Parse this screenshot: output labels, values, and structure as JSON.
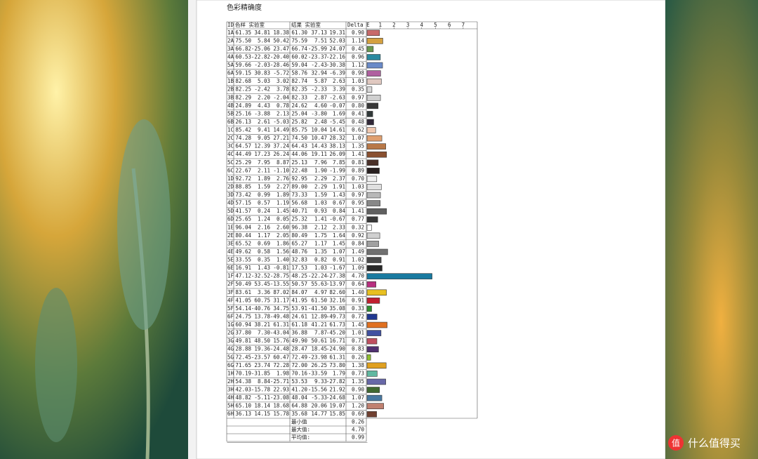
{
  "title": "色彩精确度",
  "table": {
    "header": [
      "ID",
      "色样 实验室",
      "结果 实验室",
      "Delta E"
    ],
    "axis_ticks": [
      1,
      2,
      3,
      4,
      5,
      6,
      7
    ],
    "rows": [
      {
        "id": "1A",
        "sample": [
          "61.35",
          "34.81",
          "18.38"
        ],
        "result": [
          "61.30",
          "37.13",
          "19.31"
        ],
        "delta_e": "0.90",
        "color": "#c86a6a"
      },
      {
        "id": "2A",
        "sample": [
          "75.50",
          "5.84",
          "50.42"
        ],
        "result": [
          "75.59",
          "7.51",
          "52.03"
        ],
        "delta_e": "1.14",
        "color": "#d4a040"
      },
      {
        "id": "3A",
        "sample": [
          "66.82",
          "-25.06",
          "23.47"
        ],
        "result": [
          "66.74",
          "-25.99",
          "24.07"
        ],
        "delta_e": "0.45",
        "color": "#6a9a50"
      },
      {
        "id": "4A",
        "sample": [
          "60.53",
          "-22.82",
          "-20.40"
        ],
        "result": [
          "60.02",
          "-23.37",
          "-22.16"
        ],
        "delta_e": "0.96",
        "color": "#2a8aa0"
      },
      {
        "id": "5A",
        "sample": [
          "59.66",
          "-2.03",
          "-28.46"
        ],
        "result": [
          "59.04",
          "-2.43",
          "-30.38"
        ],
        "delta_e": "1.12",
        "color": "#6a8ac8"
      },
      {
        "id": "6A",
        "sample": [
          "59.15",
          "30.83",
          "-5.72"
        ],
        "result": [
          "58.76",
          "32.94",
          "-6.39"
        ],
        "delta_e": "0.98",
        "color": "#b060a0"
      },
      {
        "id": "1B",
        "sample": [
          "82.68",
          "5.03",
          "3.02"
        ],
        "result": [
          "82.74",
          "5.87",
          "2.63"
        ],
        "delta_e": "1.03",
        "color": "#e0c8c0"
      },
      {
        "id": "2B",
        "sample": [
          "82.25",
          "-2.42",
          "3.78"
        ],
        "result": [
          "82.35",
          "-2.33",
          "3.39"
        ],
        "delta_e": "0.35",
        "color": "#d8d8d8"
      },
      {
        "id": "3B",
        "sample": [
          "82.29",
          "2.20",
          "-2.04"
        ],
        "result": [
          "82.33",
          "2.87",
          "-2.63"
        ],
        "delta_e": "0.97",
        "color": "#d0d0d0"
      },
      {
        "id": "4B",
        "sample": [
          "24.89",
          "4.43",
          "0.78"
        ],
        "result": [
          "24.62",
          "4.60",
          "-0.07"
        ],
        "delta_e": "0.80",
        "color": "#383838"
      },
      {
        "id": "5B",
        "sample": [
          "25.16",
          "-3.88",
          "2.13"
        ],
        "result": [
          "25.04",
          "-3.80",
          "1.69"
        ],
        "delta_e": "0.41",
        "color": "#303838"
      },
      {
        "id": "6B",
        "sample": [
          "26.13",
          "2.61",
          "-5.03"
        ],
        "result": [
          "25.82",
          "2.48",
          "-5.45"
        ],
        "delta_e": "0.48",
        "color": "#302838"
      },
      {
        "id": "1C",
        "sample": [
          "85.42",
          "9.41",
          "14.49"
        ],
        "result": [
          "85.75",
          "10.04",
          "14.61"
        ],
        "delta_e": "0.62",
        "color": "#f0c8b0"
      },
      {
        "id": "2C",
        "sample": [
          "74.28",
          "9.05",
          "27.21"
        ],
        "result": [
          "74.50",
          "10.47",
          "28.32"
        ],
        "delta_e": "1.07",
        "color": "#e0a070"
      },
      {
        "id": "3C",
        "sample": [
          "64.57",
          "12.39",
          "37.24"
        ],
        "result": [
          "64.43",
          "14.43",
          "38.13"
        ],
        "delta_e": "1.35",
        "color": "#b87848"
      },
      {
        "id": "4C",
        "sample": [
          "44.49",
          "17.23",
          "26.24"
        ],
        "result": [
          "44.06",
          "19.11",
          "26.09"
        ],
        "delta_e": "1.41",
        "color": "#8a5030"
      },
      {
        "id": "5C",
        "sample": [
          "25.29",
          "7.95",
          "8.87"
        ],
        "result": [
          "25.13",
          "7.96",
          "7.85"
        ],
        "delta_e": "0.81",
        "color": "#4a3028"
      },
      {
        "id": "6C",
        "sample": [
          "22.67",
          "2.11",
          "-1.10"
        ],
        "result": [
          "22.48",
          "1.90",
          "-1.99"
        ],
        "delta_e": "0.89",
        "color": "#282020"
      },
      {
        "id": "1D",
        "sample": [
          "92.72",
          "1.89",
          "2.76"
        ],
        "result": [
          "92.95",
          "2.29",
          "2.37"
        ],
        "delta_e": "0.70",
        "color": "#f0f0f0"
      },
      {
        "id": "2D",
        "sample": [
          "88.85",
          "1.59",
          "2.27"
        ],
        "result": [
          "89.00",
          "2.29",
          "1.91"
        ],
        "delta_e": "1.03",
        "color": "#e0e0e0"
      },
      {
        "id": "3D",
        "sample": [
          "73.42",
          "0.99",
          "1.89"
        ],
        "result": [
          "73.33",
          "1.59",
          "1.43"
        ],
        "delta_e": "0.97",
        "color": "#b8b8b8"
      },
      {
        "id": "4D",
        "sample": [
          "57.15",
          "0.57",
          "1.19"
        ],
        "result": [
          "56.68",
          "1.03",
          "0.67"
        ],
        "delta_e": "0.95",
        "color": "#888888"
      },
      {
        "id": "5D",
        "sample": [
          "41.57",
          "0.24",
          "1.45"
        ],
        "result": [
          "40.71",
          "0.93",
          "0.84"
        ],
        "delta_e": "1.41",
        "color": "#606060"
      },
      {
        "id": "6D",
        "sample": [
          "25.65",
          "1.24",
          "0.05"
        ],
        "result": [
          "25.32",
          "1.41",
          "-0.67"
        ],
        "delta_e": "0.77",
        "color": "#383838"
      },
      {
        "id": "1E",
        "sample": [
          "96.04",
          "2.16",
          "2.60"
        ],
        "result": [
          "96.38",
          "2.12",
          "2.33"
        ],
        "delta_e": "0.32",
        "color": "#ffffff"
      },
      {
        "id": "2E",
        "sample": [
          "80.44",
          "1.17",
          "2.05"
        ],
        "result": [
          "80.49",
          "1.75",
          "1.64"
        ],
        "delta_e": "0.92",
        "color": "#d0d0d0"
      },
      {
        "id": "3E",
        "sample": [
          "65.52",
          "0.69",
          "1.86"
        ],
        "result": [
          "65.27",
          "1.17",
          "1.45"
        ],
        "delta_e": "0.84",
        "color": "#a0a0a0"
      },
      {
        "id": "4E",
        "sample": [
          "49.62",
          "0.58",
          "1.56"
        ],
        "result": [
          "48.76",
          "1.35",
          "1.07"
        ],
        "delta_e": "1.49",
        "color": "#707070"
      },
      {
        "id": "5E",
        "sample": [
          "33.55",
          "0.35",
          "1.40"
        ],
        "result": [
          "32.83",
          "0.82",
          "0.91"
        ],
        "delta_e": "1.02",
        "color": "#484848"
      },
      {
        "id": "6E",
        "sample": [
          "16.91",
          "1.43",
          "-0.81"
        ],
        "result": [
          "17.53",
          "1.03",
          "-1.67"
        ],
        "delta_e": "1.09",
        "color": "#282828"
      },
      {
        "id": "1F",
        "sample": [
          "47.12",
          "-32.52",
          "-28.75"
        ],
        "result": [
          "48.25",
          "-22.24",
          "-27.38"
        ],
        "delta_e": "4.70",
        "color": "#1a7aa0"
      },
      {
        "id": "2F",
        "sample": [
          "50.49",
          "53.45",
          "-13.55"
        ],
        "result": [
          "50.57",
          "55.63",
          "-13.97"
        ],
        "delta_e": "0.64",
        "color": "#b83080"
      },
      {
        "id": "3F",
        "sample": [
          "83.61",
          "3.36",
          "87.02"
        ],
        "result": [
          "84.07",
          "4.97",
          "82.60"
        ],
        "delta_e": "1.40",
        "color": "#e8c020"
      },
      {
        "id": "4F",
        "sample": [
          "41.05",
          "60.75",
          "31.17"
        ],
        "result": [
          "41.95",
          "61.50",
          "32.16"
        ],
        "delta_e": "0.91",
        "color": "#c02030"
      },
      {
        "id": "5F",
        "sample": [
          "54.14",
          "-40.76",
          "34.75"
        ],
        "result": [
          "53.91",
          "-41.50",
          "35.08"
        ],
        "delta_e": "0.33",
        "color": "#309030"
      },
      {
        "id": "6F",
        "sample": [
          "24.75",
          "13.78",
          "-49.48"
        ],
        "result": [
          "24.61",
          "12.89",
          "-49.73"
        ],
        "delta_e": "0.72",
        "color": "#203890"
      },
      {
        "id": "1G",
        "sample": [
          "60.94",
          "38.21",
          "61.31"
        ],
        "result": [
          "61.18",
          "41.21",
          "61.73"
        ],
        "delta_e": "1.45",
        "color": "#e07020"
      },
      {
        "id": "2G",
        "sample": [
          "37.80",
          "7.30",
          "-43.04"
        ],
        "result": [
          "36.88",
          "7.87",
          "-45.20"
        ],
        "delta_e": "1.01",
        "color": "#4050a0"
      },
      {
        "id": "3G",
        "sample": [
          "49.81",
          "48.50",
          "15.76"
        ],
        "result": [
          "49.90",
          "50.61",
          "16.71"
        ],
        "delta_e": "0.71",
        "color": "#c05060"
      },
      {
        "id": "4G",
        "sample": [
          "28.88",
          "19.36",
          "-24.48"
        ],
        "result": [
          "28.47",
          "18.45",
          "-24.90"
        ],
        "delta_e": "0.83",
        "color": "#503070"
      },
      {
        "id": "5G",
        "sample": [
          "72.45",
          "-23.57",
          "60.47"
        ],
        "result": [
          "72.49",
          "-23.98",
          "61.31"
        ],
        "delta_e": "0.26",
        "color": "#90c030"
      },
      {
        "id": "6G",
        "sample": [
          "71.65",
          "23.74",
          "72.28"
        ],
        "result": [
          "72.00",
          "26.25",
          "73.80"
        ],
        "delta_e": "1.38",
        "color": "#e0a020"
      },
      {
        "id": "1H",
        "sample": [
          "70.19",
          "-31.85",
          "1.98"
        ],
        "result": [
          "70.16",
          "-33.59",
          "1.79"
        ],
        "delta_e": "0.73",
        "color": "#60b8a0"
      },
      {
        "id": "2H",
        "sample": [
          "54.38",
          "8.84",
          "-25.71"
        ],
        "result": [
          "53.53",
          "9.33",
          "-27.82"
        ],
        "delta_e": "1.35",
        "color": "#6868a8"
      },
      {
        "id": "3H",
        "sample": [
          "42.03",
          "-15.78",
          "22.93"
        ],
        "result": [
          "41.20",
          "-15.56",
          "21.92"
        ],
        "delta_e": "0.90",
        "color": "#406830"
      },
      {
        "id": "4H",
        "sample": [
          "48.82",
          "-5.11",
          "-23.08"
        ],
        "result": [
          "48.04",
          "-5.33",
          "-24.68"
        ],
        "delta_e": "1.07",
        "color": "#4878a0"
      },
      {
        "id": "5H",
        "sample": [
          "65.10",
          "18.14",
          "18.68"
        ],
        "result": [
          "64.88",
          "20.06",
          "19.07"
        ],
        "delta_e": "1.20",
        "color": "#c08070"
      },
      {
        "id": "6H",
        "sample": [
          "36.13",
          "14.15",
          "15.78"
        ],
        "result": [
          "35.68",
          "14.77",
          "15.85"
        ],
        "delta_e": "0.69",
        "color": "#704030"
      }
    ],
    "summary": [
      {
        "label": "最小值",
        "value": "0.26"
      },
      {
        "label": "最大值:",
        "value": "4.70"
      },
      {
        "label": "平均值:",
        "value": "0.99"
      }
    ]
  },
  "watermark": {
    "icon": "值",
    "text": "什么值得买"
  }
}
